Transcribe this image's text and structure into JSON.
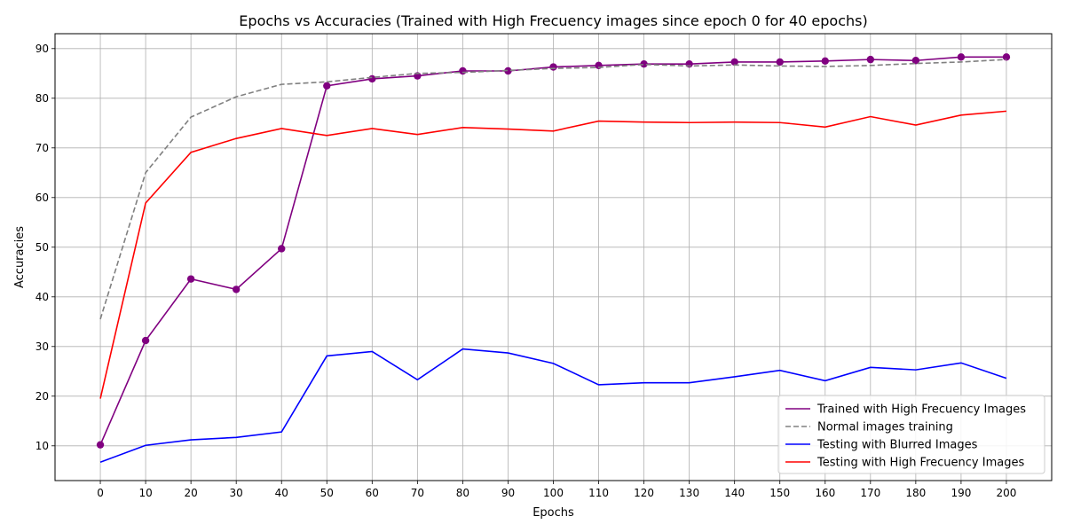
{
  "chart_data": {
    "type": "line",
    "title": "Epochs vs Accuracies (Trained with High Frecuency images since epoch 0 for 40 epochs)",
    "xlabel": "Epochs",
    "ylabel": "Accuracies",
    "x": [
      0,
      10,
      20,
      30,
      40,
      50,
      60,
      70,
      80,
      90,
      100,
      110,
      120,
      130,
      140,
      150,
      160,
      170,
      180,
      190,
      200
    ],
    "xlim": [
      -10,
      210
    ],
    "ylim": [
      3,
      93
    ],
    "xticks": [
      0,
      10,
      20,
      30,
      40,
      50,
      60,
      70,
      80,
      90,
      100,
      110,
      120,
      130,
      140,
      150,
      160,
      170,
      180,
      190,
      200
    ],
    "yticks": [
      10,
      20,
      30,
      40,
      50,
      60,
      70,
      80,
      90
    ],
    "grid": true,
    "legend_position": "bottom-right",
    "series": [
      {
        "name": "Trained with High Frecuency Images",
        "color": "#800080",
        "style": "solid",
        "markers": true,
        "values": [
          10.2,
          31.2,
          43.6,
          41.5,
          49.7,
          82.5,
          83.9,
          84.5,
          85.5,
          85.5,
          86.3,
          86.6,
          86.9,
          86.9,
          87.3,
          87.3,
          87.5,
          87.8,
          87.6,
          88.3,
          88.3
        ]
      },
      {
        "name": "Normal images training",
        "color": "#808080",
        "style": "dashed",
        "markers": false,
        "values": [
          35.5,
          65.0,
          76.2,
          80.3,
          82.8,
          83.3,
          84.2,
          85.0,
          85.2,
          85.6,
          86.0,
          86.2,
          86.8,
          86.5,
          86.7,
          86.5,
          86.4,
          86.6,
          87.0,
          87.3,
          87.8
        ]
      },
      {
        "name": "Testing with Blurred Images",
        "color": "#0000ff",
        "style": "solid",
        "markers": false,
        "values": [
          6.7,
          10.1,
          11.2,
          11.7,
          12.8,
          28.1,
          29.0,
          23.3,
          29.5,
          28.7,
          26.6,
          22.3,
          22.7,
          22.7,
          23.9,
          25.2,
          23.1,
          25.8,
          25.3,
          26.7,
          23.6
        ]
      },
      {
        "name": "Testing with High Frecuency Images",
        "color": "#ff0000",
        "style": "solid",
        "markers": false,
        "values": [
          19.5,
          58.9,
          69.1,
          71.9,
          73.9,
          72.5,
          73.9,
          72.7,
          74.1,
          73.8,
          73.4,
          75.4,
          75.2,
          75.1,
          75.2,
          75.1,
          74.2,
          76.3,
          74.6,
          76.6,
          77.4
        ]
      }
    ]
  }
}
